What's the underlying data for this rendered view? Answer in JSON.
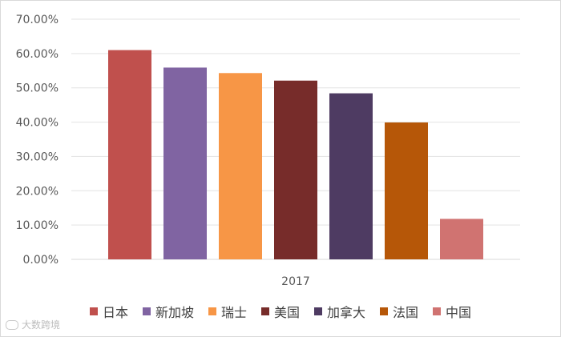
{
  "chart_data": {
    "type": "bar",
    "title": "",
    "xlabel": "",
    "ylabel": "",
    "group_label": "2017",
    "ylim": [
      0,
      0.7
    ],
    "yticks": [
      "0.00%",
      "10.00%",
      "20.00%",
      "30.00%",
      "40.00%",
      "50.00%",
      "60.00%",
      "70.00%"
    ],
    "grid": true,
    "legend_position": "bottom",
    "series": [
      {
        "name": "日本",
        "values": [
          0.61
        ],
        "color": "#C0504D"
      },
      {
        "name": "新加坡",
        "values": [
          0.559
        ],
        "color": "#8064A2"
      },
      {
        "name": "瑞士",
        "values": [
          0.543
        ],
        "color": "#F79646"
      },
      {
        "name": "美国",
        "values": [
          0.521
        ],
        "color": "#772C2A"
      },
      {
        "name": "加拿大",
        "values": [
          0.484
        ],
        "color": "#4E3B62"
      },
      {
        "name": "法国",
        "values": [
          0.399
        ],
        "color": "#B65708"
      },
      {
        "name": "中国",
        "values": [
          0.118
        ],
        "color": "#D07371"
      }
    ]
  },
  "watermark": "大数跨境"
}
